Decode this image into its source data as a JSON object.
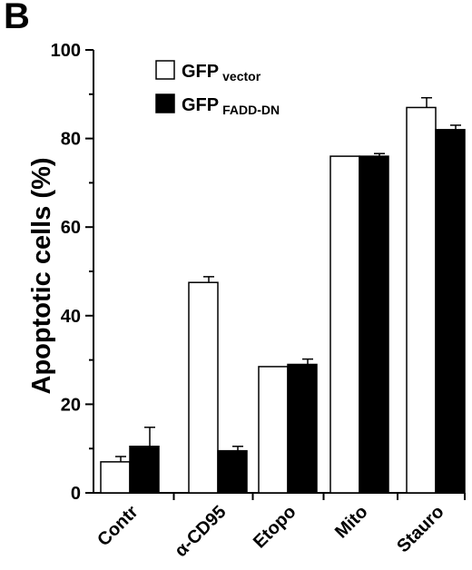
{
  "panel_label": "B",
  "chart_data": {
    "type": "bar",
    "ylabel": "Apoptotic cells (%)",
    "xlabel": "",
    "ylim": [
      0,
      100
    ],
    "yticks": [
      "0",
      "20",
      "40",
      "60",
      "80",
      "100"
    ],
    "categories": [
      "Contr",
      "α-CD95",
      "Etopo",
      "Mito",
      "Stauro"
    ],
    "series": [
      {
        "name_main": "GFP",
        "name_sub": "vector",
        "fill": "#ffffff",
        "values": [
          7,
          47.5,
          28.5,
          76,
          87
        ],
        "errors": [
          1.2,
          1.3,
          0,
          0,
          2.2
        ]
      },
      {
        "name_main": "GFP",
        "name_sub": "FADD-DN",
        "fill": "#000000",
        "values": [
          10.5,
          9.5,
          29,
          76,
          82
        ],
        "errors": [
          4.3,
          1,
          1.2,
          0.6,
          1
        ]
      }
    ],
    "legend_position": "top-left",
    "grid": false
  }
}
